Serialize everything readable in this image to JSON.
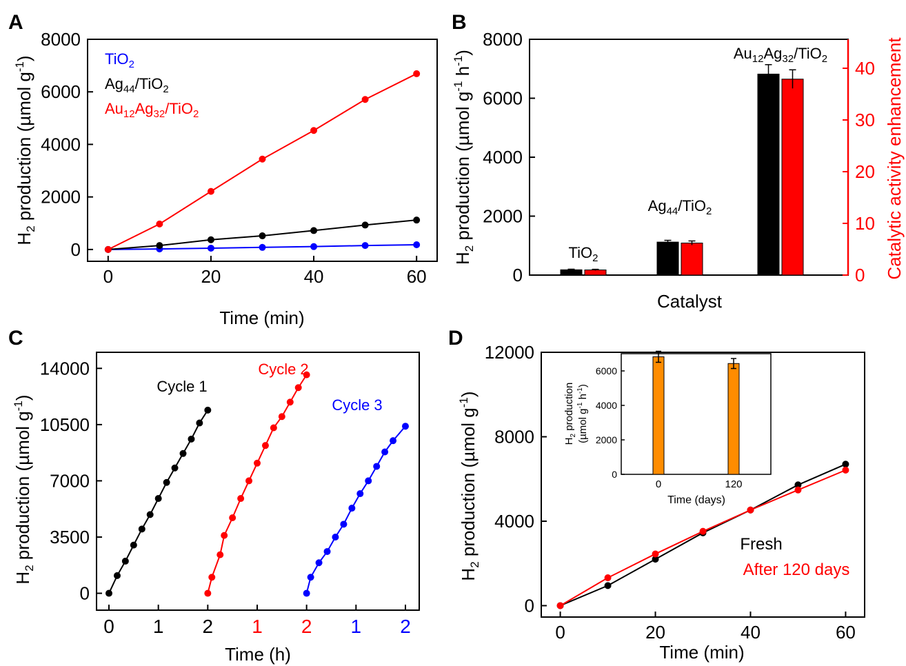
{
  "colors": {
    "black": "#000000",
    "red": "#ff0000",
    "blue": "#0000ff",
    "orange": "#ff8c00"
  },
  "chart_data": [
    {
      "panel": "A",
      "type": "line",
      "xlabel": "Time (min)",
      "ylabel": "H2 production (µmol g-1)",
      "xlim": [
        -4,
        64
      ],
      "ylim": [
        -450,
        8000
      ],
      "xticks": [
        0,
        20,
        40,
        60
      ],
      "yticks": [
        0,
        2000,
        4000,
        6000,
        8000
      ],
      "legend": "top-left",
      "series": [
        {
          "name": "TiO2",
          "color": "#0000ff",
          "x": [
            0,
            10,
            20,
            30,
            40,
            50,
            60
          ],
          "y": [
            0,
            20,
            50,
            80,
            110,
            150,
            180
          ]
        },
        {
          "name": "Ag44/TiO2",
          "color": "#000000",
          "x": [
            0,
            10,
            20,
            30,
            40,
            50,
            60
          ],
          "y": [
            0,
            150,
            370,
            520,
            720,
            930,
            1120
          ]
        },
        {
          "name": "Au12Ag32/TiO2",
          "color": "#ff0000",
          "x": [
            0,
            10,
            20,
            30,
            40,
            50,
            60
          ],
          "y": [
            0,
            970,
            2210,
            3440,
            4530,
            5710,
            6690
          ]
        }
      ]
    },
    {
      "panel": "B",
      "type": "bar",
      "xlabel": "Catalyst",
      "ylabel": "H2 production (µmol g-1 h-1)",
      "ylabel_right": "Catalytic activity enhancement",
      "ylim": [
        0,
        8000
      ],
      "ylim_right": [
        0,
        45.6
      ],
      "yticks": [
        0,
        2000,
        4000,
        6000,
        8000
      ],
      "yticks_right": [
        0,
        10,
        20,
        30,
        40
      ],
      "categories": [
        "TiO2",
        "Ag44/TiO2",
        "Au12Ag32/TiO2"
      ],
      "series": [
        {
          "axis": "left",
          "color": "#000000",
          "values": [
            180,
            1120,
            6820
          ],
          "errors": [
            20,
            60,
            320
          ]
        },
        {
          "axis": "right",
          "color": "#ff0000",
          "values": [
            1,
            6.2,
            37.9
          ],
          "errors": [
            0.12,
            0.4,
            1.8
          ]
        }
      ]
    },
    {
      "panel": "C",
      "type": "line",
      "xlabel": "Time (h)",
      "ylabel": "H2 production (µmol g-1)",
      "ylim": [
        -1050,
        15000
      ],
      "yticks": [
        0,
        3500,
        7000,
        10500,
        14000
      ],
      "xtick_labels": [
        {
          "label": "0",
          "color": "#000000"
        },
        {
          "label": "1",
          "color": "#000000"
        },
        {
          "label": "2",
          "color": "#000000"
        },
        {
          "label": "1",
          "color": "#ff0000"
        },
        {
          "label": "2",
          "color": "#ff0000"
        },
        {
          "label": "1",
          "color": "#0000ff"
        },
        {
          "label": "2",
          "color": "#0000ff"
        }
      ],
      "series": [
        {
          "name": "Cycle 1",
          "color": "#000000",
          "x_hours": [
            0,
            0.167,
            0.333,
            0.5,
            0.667,
            0.833,
            1,
            1.167,
            1.333,
            1.5,
            1.667,
            1.833,
            2
          ],
          "y": [
            0,
            1100,
            2000,
            3000,
            4000,
            4900,
            5900,
            6900,
            7800,
            8700,
            9600,
            10600,
            11400
          ]
        },
        {
          "name": "Cycle 2",
          "color": "#ff0000",
          "x_hours": [
            0,
            0.083,
            0.25,
            0.333,
            0.5,
            0.667,
            0.833,
            1,
            1.167,
            1.333,
            1.5,
            1.667,
            1.833,
            2
          ],
          "y": [
            0,
            1000,
            2400,
            3600,
            4700,
            5900,
            7000,
            8100,
            9200,
            10300,
            11000,
            11900,
            12800,
            13600
          ]
        },
        {
          "name": "Cycle 3",
          "color": "#0000ff",
          "x_hours": [
            0,
            0.083,
            0.25,
            0.417,
            0.583,
            0.75,
            0.917,
            1.083,
            1.25,
            1.417,
            1.583,
            1.75,
            2
          ],
          "y": [
            0,
            1000,
            1900,
            2600,
            3500,
            4300,
            5300,
            6200,
            7000,
            7900,
            8800,
            9500,
            10400
          ]
        }
      ]
    },
    {
      "panel": "D",
      "type": "line",
      "xlabel": "Time (min)",
      "ylabel": "H2 production (µmol g-1)",
      "xlim": [
        -4,
        64
      ],
      "ylim": [
        -540,
        12000
      ],
      "xticks": [
        0,
        20,
        40,
        60
      ],
      "yticks": [
        0,
        4000,
        8000,
        12000
      ],
      "series": [
        {
          "name": "Fresh",
          "color": "#000000",
          "x": [
            0,
            10,
            20,
            30,
            40,
            50,
            60
          ],
          "y": [
            0,
            950,
            2200,
            3450,
            4530,
            5720,
            6700
          ]
        },
        {
          "name": "After 120 days",
          "color": "#ff0000",
          "x": [
            0,
            10,
            20,
            30,
            40,
            50,
            60
          ],
          "y": [
            0,
            1320,
            2450,
            3520,
            4530,
            5480,
            6420
          ]
        }
      ],
      "inset": {
        "type": "bar",
        "xlabel": "Time (days)",
        "ylabel": "H2 production (µmol g-1 h-1)",
        "ylim": [
          0,
          7000
        ],
        "yticks": [
          0,
          2000,
          4000,
          6000
        ],
        "categories": [
          "0",
          "120"
        ],
        "values": [
          6820,
          6430
        ],
        "errors": [
          320,
          290
        ],
        "color": "#ff8c00"
      }
    }
  ],
  "labels": {
    "A": {
      "panel": "A",
      "xlabel": "Time (min)",
      "ylabel": "production (µmol g",
      "ylabel_sub": "2",
      "ylabel_sup": "-1",
      "ylabel_pre": "H",
      "legend": [
        {
          "base": "TiO",
          "sub": "2"
        },
        {
          "a": "Ag",
          "as": "44",
          "b": "/TiO",
          "bs": "2"
        },
        {
          "a": "Au",
          "as": "12",
          "b": "Ag",
          "bs": "32",
          "c": "/TiO",
          "cs": "2"
        }
      ],
      "xticks": [
        "0",
        "20",
        "40",
        "60"
      ],
      "yticks": [
        "0",
        "2000",
        "4000",
        "6000",
        "8000"
      ]
    },
    "B": {
      "panel": "B",
      "xlabel": "Catalyst",
      "ylabel_right": "Catalytic activity enhancement",
      "yticks": [
        "0",
        "2000",
        "4000",
        "6000",
        "8000"
      ],
      "yticks_right": [
        "0",
        "10",
        "20",
        "30",
        "40"
      ]
    },
    "C": {
      "panel": "C",
      "xlabel": "Time (h)",
      "yticks": [
        "0",
        "3500",
        "7000",
        "10500",
        "14000"
      ],
      "cycles": [
        "Cycle 1",
        "Cycle 2",
        "Cycle 3"
      ]
    },
    "D": {
      "panel": "D",
      "xlabel": "Time (min)",
      "yticks": [
        "0",
        "4000",
        "8000",
        "12000"
      ],
      "xticks": [
        "0",
        "20",
        "40",
        "60"
      ],
      "legend": [
        "Fresh",
        "After 120 days"
      ],
      "inset_xlabel": "Time (days)",
      "inset_xticks": [
        "0",
        "120"
      ],
      "inset_yticks": [
        "0",
        "2000",
        "4000",
        "6000"
      ]
    }
  }
}
